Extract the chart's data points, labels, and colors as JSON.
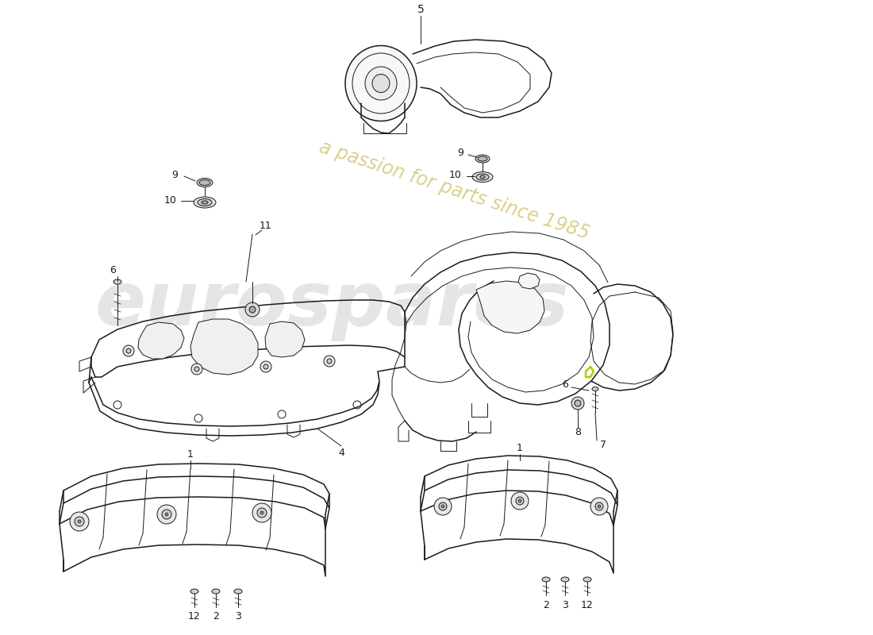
{
  "background_color": "#ffffff",
  "line_color": "#1a1a1a",
  "watermark_color": "#cccccc",
  "watermark_color2": "#d4c87a",
  "watermark_text1": "eurospares",
  "watermark_text2": "a passion for parts since 1985",
  "lc": "#1a1a1a",
  "lw_main": 1.1,
  "lw_thin": 0.7
}
